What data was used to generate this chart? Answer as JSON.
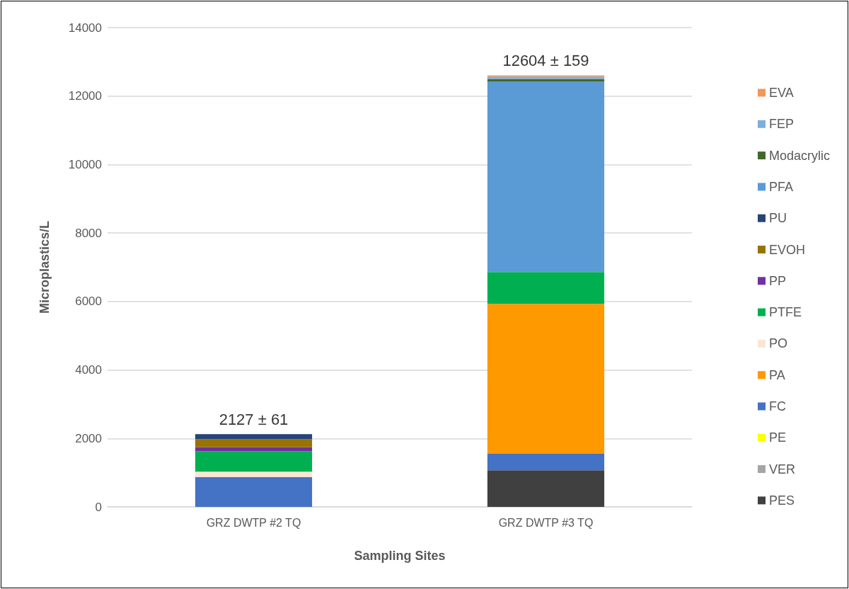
{
  "chart_data": {
    "type": "bar",
    "stacked": true,
    "xlabel": "Sampling Sites",
    "ylabel": "Microplastics/L",
    "categories": [
      "GRZ DWTP #2 TQ",
      "GRZ DWTP #3 TQ"
    ],
    "series": [
      {
        "name": "PES",
        "color": "#404040",
        "values": [
          0,
          1070
        ]
      },
      {
        "name": "VER",
        "color": "#a5a5a5",
        "values": [
          0,
          0
        ]
      },
      {
        "name": "PE",
        "color": "#ffff00",
        "values": [
          0,
          0
        ]
      },
      {
        "name": "FC",
        "color": "#4472c4",
        "values": [
          870,
          480
        ]
      },
      {
        "name": "PA",
        "color": "#ff9900",
        "values": [
          0,
          4380
        ]
      },
      {
        "name": "PO",
        "color": "#fbe5d6",
        "values": [
          160,
          0
        ]
      },
      {
        "name": "PTFE",
        "color": "#00b050",
        "values": [
          600,
          930
        ]
      },
      {
        "name": "PP",
        "color": "#7030a0",
        "values": [
          120,
          0
        ]
      },
      {
        "name": "EVOH",
        "color": "#997300",
        "values": [
          230,
          0
        ]
      },
      {
        "name": "PU",
        "color": "#264478",
        "values": [
          147,
          0
        ]
      },
      {
        "name": "PFA",
        "color": "#5b9bd5",
        "values": [
          0,
          5560
        ]
      },
      {
        "name": "Modacrylic",
        "color": "#43682b",
        "values": [
          0,
          80
        ]
      },
      {
        "name": "FEP",
        "color": "#7cafdd",
        "values": [
          0,
          70
        ]
      },
      {
        "name": "EVA",
        "color": "#f1975a",
        "values": [
          0,
          34
        ]
      }
    ],
    "annotations": [
      {
        "text": "2127 ± 61",
        "x": "GRZ DWTP #2 TQ",
        "y": 2127
      },
      {
        "text": "12604 ± 159",
        "x": "GRZ DWTP #3 TQ",
        "y": 12604
      }
    ],
    "ylim": [
      0,
      14000
    ],
    "yticks": [
      0,
      2000,
      4000,
      6000,
      8000,
      10000,
      12000,
      14000
    ],
    "grid": "y",
    "legend": "right"
  }
}
